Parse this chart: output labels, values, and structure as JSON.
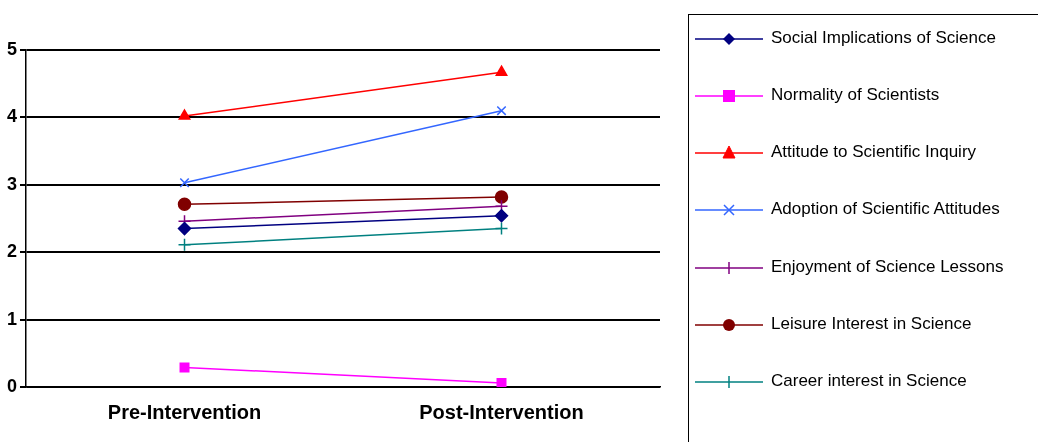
{
  "chart_data": {
    "type": "line",
    "categories": [
      "Pre-Intervention",
      "Post-Intervention"
    ],
    "series": [
      {
        "name": "Social Implications of Science",
        "color": "#000080",
        "marker": "diamond",
        "values": [
          2.35,
          2.54
        ]
      },
      {
        "name": "Normality of Scientists",
        "color": "#ff00ff",
        "marker": "square",
        "values": [
          0.29,
          0.06
        ]
      },
      {
        "name": "Attitude to Scientific Inquiry",
        "color": "#ff0000",
        "marker": "triangle",
        "values": [
          4.02,
          4.67
        ]
      },
      {
        "name": "Adoption of Scientific Attitudes",
        "color": "#3366ff",
        "marker": "x",
        "values": [
          3.03,
          4.1
        ]
      },
      {
        "name": "Enjoyment of Science Lessons",
        "color": "#800080",
        "marker": "cross",
        "values": [
          2.46,
          2.68
        ]
      },
      {
        "name": "Leisure Interest in Science",
        "color": "#800000",
        "marker": "circle",
        "values": [
          2.71,
          2.82
        ]
      },
      {
        "name": "Career interest in Science",
        "color": "#008080",
        "marker": "cross",
        "values": [
          2.11,
          2.35
        ]
      }
    ],
    "ylim": [
      0,
      5
    ],
    "yticks": [
      0,
      1,
      2,
      3,
      4,
      5
    ],
    "grid": "y",
    "legend": "right"
  }
}
